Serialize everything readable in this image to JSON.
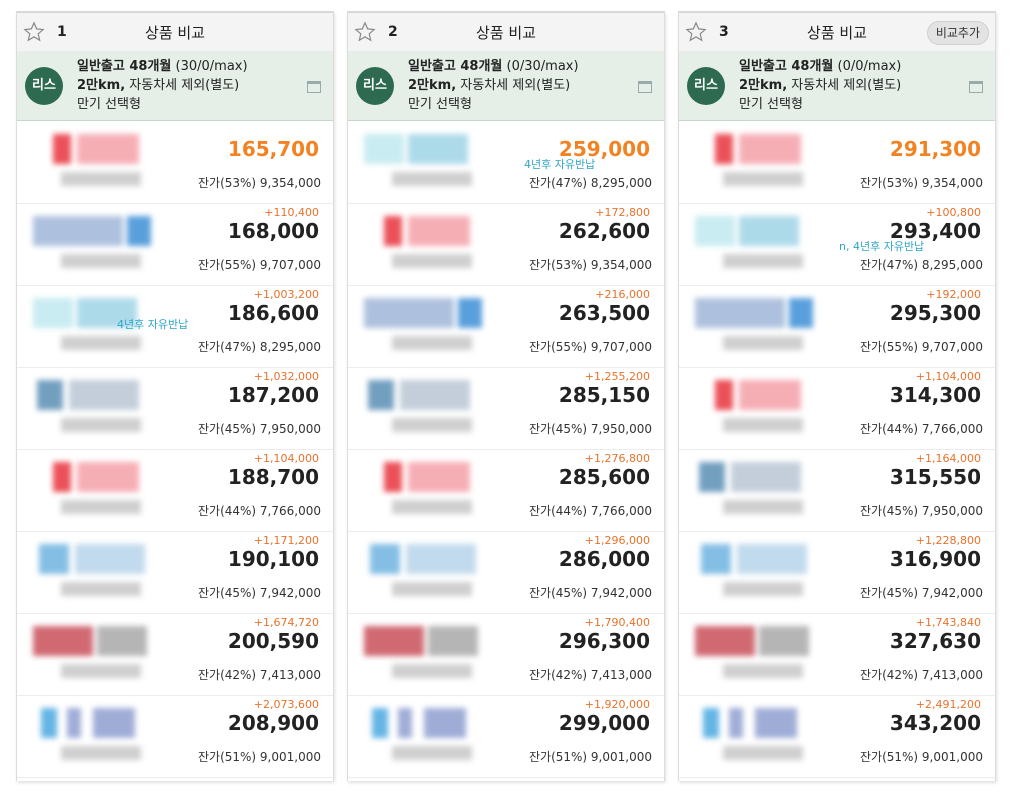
{
  "columns": [
    {
      "number": "1",
      "title": "상품 비교",
      "add_label": "",
      "cond_line1": "일반출고 48개월",
      "cond_line1_extra": "(30/0/max)",
      "cond_line2": "2만km,",
      "cond_line2_extra": "자동차세 제외(별도)",
      "cond_line3": "만기 선택형",
      "badge": "리스",
      "rows": [
        {
          "diff": "",
          "price": "165,700",
          "best": true,
          "resid": "잔가(53%) 9,354,000",
          "logo": "red",
          "note": ""
        },
        {
          "diff": "+110,400",
          "price": "168,000",
          "best": false,
          "resid": "잔가(55%) 9,707,000",
          "logo": "blue",
          "note": ""
        },
        {
          "diff": "+1,003,200",
          "price": "186,600",
          "best": false,
          "resid": "잔가(47%) 8,295,000",
          "logo": "cyan",
          "note": "4년후 자유반납"
        },
        {
          "diff": "+1,032,000",
          "price": "187,200",
          "best": false,
          "resid": "잔가(45%) 7,950,000",
          "logo": "teal",
          "note": ""
        },
        {
          "diff": "+1,104,000",
          "price": "188,700",
          "best": false,
          "resid": "잔가(44%) 7,766,000",
          "logo": "red",
          "note": ""
        },
        {
          "diff": "+1,171,200",
          "price": "190,100",
          "best": false,
          "resid": "잔가(45%) 7,942,000",
          "logo": "sky",
          "note": ""
        },
        {
          "diff": "+1,674,720",
          "price": "200,590",
          "best": false,
          "resid": "잔가(42%) 7,413,000",
          "logo": "darkred",
          "note": ""
        },
        {
          "diff": "+2,073,600",
          "price": "208,900",
          "best": false,
          "resid": "잔가(51%) 9,001,000",
          "logo": "navy",
          "note": ""
        }
      ]
    },
    {
      "number": "2",
      "title": "상품 비교",
      "add_label": "",
      "cond_line1": "일반출고 48개월",
      "cond_line1_extra": "(0/30/max)",
      "cond_line2": "2만km,",
      "cond_line2_extra": "자동차세 제외(별도)",
      "cond_line3": "만기 선택형",
      "badge": "리스",
      "rows": [
        {
          "diff": "",
          "price": "259,000",
          "best": true,
          "resid": "잔가(47%) 8,295,000",
          "logo": "cyan",
          "note": "4년후 자유반납"
        },
        {
          "diff": "+172,800",
          "price": "262,600",
          "best": false,
          "resid": "잔가(53%) 9,354,000",
          "logo": "red",
          "note": ""
        },
        {
          "diff": "+216,000",
          "price": "263,500",
          "best": false,
          "resid": "잔가(55%) 9,707,000",
          "logo": "blue",
          "note": ""
        },
        {
          "diff": "+1,255,200",
          "price": "285,150",
          "best": false,
          "resid": "잔가(45%) 7,950,000",
          "logo": "teal",
          "note": ""
        },
        {
          "diff": "+1,276,800",
          "price": "285,600",
          "best": false,
          "resid": "잔가(44%) 7,766,000",
          "logo": "red",
          "note": ""
        },
        {
          "diff": "+1,296,000",
          "price": "286,000",
          "best": false,
          "resid": "잔가(45%) 7,942,000",
          "logo": "sky",
          "note": ""
        },
        {
          "diff": "+1,790,400",
          "price": "296,300",
          "best": false,
          "resid": "잔가(42%) 7,413,000",
          "logo": "darkred",
          "note": ""
        },
        {
          "diff": "+1,920,000",
          "price": "299,000",
          "best": false,
          "resid": "잔가(51%) 9,001,000",
          "logo": "navy",
          "note": ""
        }
      ]
    },
    {
      "number": "3",
      "title": "상품 비교",
      "add_label": "비교추가",
      "cond_line1": "일반출고 48개월",
      "cond_line1_extra": "(0/0/max)",
      "cond_line2": "2만km,",
      "cond_line2_extra": "자동차세 제외(별도)",
      "cond_line3": "만기 선택형",
      "badge": "리스",
      "rows": [
        {
          "diff": "",
          "price": "291,300",
          "best": true,
          "resid": "잔가(53%) 9,354,000",
          "logo": "red",
          "note": ""
        },
        {
          "diff": "+100,800",
          "price": "293,400",
          "best": false,
          "resid": "잔가(47%) 8,295,000",
          "logo": "cyan",
          "note": "n, 4년후 자유반납"
        },
        {
          "diff": "+192,000",
          "price": "295,300",
          "best": false,
          "resid": "잔가(55%) 9,707,000",
          "logo": "blue",
          "note": ""
        },
        {
          "diff": "+1,104,000",
          "price": "314,300",
          "best": false,
          "resid": "잔가(44%) 7,766,000",
          "logo": "red",
          "note": ""
        },
        {
          "diff": "+1,164,000",
          "price": "315,550",
          "best": false,
          "resid": "잔가(45%) 7,950,000",
          "logo": "teal",
          "note": ""
        },
        {
          "diff": "+1,228,800",
          "price": "316,900",
          "best": false,
          "resid": "잔가(45%) 7,942,000",
          "logo": "sky",
          "note": ""
        },
        {
          "diff": "+1,743,840",
          "price": "327,630",
          "best": false,
          "resid": "잔가(42%) 7,413,000",
          "logo": "darkred",
          "note": ""
        },
        {
          "diff": "+2,491,200",
          "price": "343,200",
          "best": false,
          "resid": "잔가(51%) 9,001,000",
          "logo": "navy",
          "note": ""
        }
      ]
    }
  ],
  "colors": {
    "best_price": "#f28322",
    "diff": "#e8722c",
    "badge_bg": "#2d6a4f",
    "cond_bg": "#e5efe8",
    "note": "#2fa6c5"
  },
  "logo_palettes": {
    "red": [
      "#e8323c",
      "#f4a0a8"
    ],
    "blue": [
      "#9fb6d8",
      "#3d8fd6"
    ],
    "cyan": [
      "#bfe9ef",
      "#9fd4e6"
    ],
    "teal": [
      "#5b8fb5",
      "#b9c6d4"
    ],
    "sky": [
      "#6fb3e0",
      "#b8d4ea"
    ],
    "darkred": [
      "#c8505a",
      "#a9a9a9"
    ],
    "navy": [
      "#4aa8e0",
      "#8f9fd0"
    ]
  }
}
